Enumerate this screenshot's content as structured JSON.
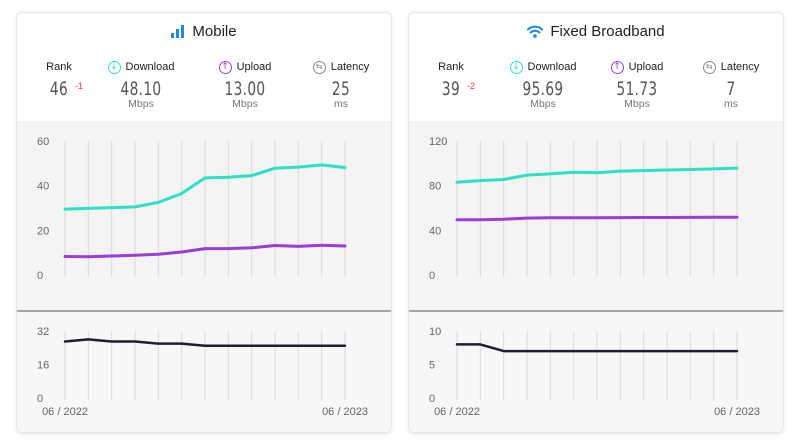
{
  "colors": {
    "download": "#2ee0c3",
    "upload": "#9b3ed6",
    "latency": "#1a1f2b",
    "title_icon": "#1e88e5",
    "rank_change": "#e53935",
    "grid": "#d9d9d9",
    "latency_icon": "#888888"
  },
  "panels": [
    {
      "title": "Mobile",
      "icon": "signal-bars-icon",
      "stats": {
        "rank": {
          "label": "Rank",
          "value": "46",
          "change": "-1"
        },
        "download": {
          "label": "Download",
          "value": "48.10",
          "unit": "Mbps",
          "icon": "download-arrow-icon"
        },
        "upload": {
          "label": "Upload",
          "value": "13.00",
          "unit": "Mbps",
          "icon": "upload-arrow-icon"
        },
        "latency": {
          "label": "Latency",
          "value": "25",
          "unit": "ms",
          "icon": "latency-arrows-icon"
        }
      }
    },
    {
      "title": "Fixed Broadband",
      "icon": "wifi-icon",
      "stats": {
        "rank": {
          "label": "Rank",
          "value": "39",
          "change": "-2"
        },
        "download": {
          "label": "Download",
          "value": "95.69",
          "unit": "Mbps",
          "icon": "download-arrow-icon"
        },
        "upload": {
          "label": "Upload",
          "value": "51.73",
          "unit": "Mbps",
          "icon": "upload-arrow-icon"
        },
        "latency": {
          "label": "Latency",
          "value": "7",
          "unit": "ms",
          "icon": "latency-arrows-icon"
        }
      }
    }
  ],
  "chart_data": [
    {
      "type": "line",
      "panel": "Mobile",
      "chart": "speed",
      "x": [
        "06/2022",
        "07/2022",
        "08/2022",
        "09/2022",
        "10/2022",
        "11/2022",
        "12/2022",
        "01/2023",
        "02/2023",
        "03/2023",
        "04/2023",
        "05/2023",
        "06/2023"
      ],
      "x_tick_labels": [
        "06 / 2022",
        "06 / 2023"
      ],
      "ylim": [
        0,
        60
      ],
      "y_ticks": [
        0,
        20,
        40,
        60
      ],
      "grid": true,
      "series": [
        {
          "key": "download",
          "values": [
            29.5,
            29.8,
            30.2,
            30.5,
            32.5,
            36.5,
            43.5,
            43.8,
            44.5,
            47.8,
            48.3,
            49.3,
            48.1
          ]
        },
        {
          "key": "upload",
          "values": [
            8.3,
            8.2,
            8.5,
            8.8,
            9.3,
            10.3,
            11.8,
            11.8,
            12.2,
            13.2,
            12.8,
            13.3,
            13.0
          ]
        }
      ]
    },
    {
      "type": "line",
      "panel": "Mobile",
      "chart": "latency",
      "x": [
        "06/2022",
        "07/2022",
        "08/2022",
        "09/2022",
        "10/2022",
        "11/2022",
        "12/2022",
        "01/2023",
        "02/2023",
        "03/2023",
        "04/2023",
        "05/2023",
        "06/2023"
      ],
      "x_tick_labels": [
        "06 / 2022",
        "06 / 2023"
      ],
      "ylim": [
        0,
        32
      ],
      "y_ticks": [
        0,
        16,
        32
      ],
      "grid": true,
      "series": [
        {
          "key": "latency",
          "values": [
            27,
            28,
            27,
            27,
            26,
            26,
            25,
            25,
            25,
            25,
            25,
            25,
            25
          ]
        }
      ]
    },
    {
      "type": "line",
      "panel": "Fixed Broadband",
      "chart": "speed",
      "x": [
        "06/2022",
        "07/2022",
        "08/2022",
        "09/2022",
        "10/2022",
        "11/2022",
        "12/2022",
        "01/2023",
        "02/2023",
        "03/2023",
        "04/2023",
        "05/2023",
        "06/2023"
      ],
      "x_tick_labels": [
        "06 / 2022",
        "06 / 2023"
      ],
      "ylim": [
        0,
        120
      ],
      "y_ticks": [
        0,
        40,
        80,
        120
      ],
      "grid": true,
      "series": [
        {
          "key": "download",
          "values": [
            83,
            84.5,
            85.5,
            89.5,
            90.5,
            92,
            91.5,
            93,
            93.5,
            94,
            94.5,
            95,
            95.7
          ]
        },
        {
          "key": "upload",
          "values": [
            49.5,
            49.5,
            50,
            51,
            51.2,
            51.3,
            51.3,
            51.4,
            51.5,
            51.5,
            51.6,
            51.7,
            51.7
          ]
        }
      ]
    },
    {
      "type": "line",
      "panel": "Fixed Broadband",
      "chart": "latency",
      "x": [
        "06/2022",
        "07/2022",
        "08/2022",
        "09/2022",
        "10/2022",
        "11/2022",
        "12/2022",
        "01/2023",
        "02/2023",
        "03/2023",
        "04/2023",
        "05/2023",
        "06/2023"
      ],
      "x_tick_labels": [
        "06 / 2022",
        "06 / 2023"
      ],
      "ylim": [
        0,
        10
      ],
      "y_ticks": [
        0,
        5,
        10
      ],
      "grid": true,
      "series": [
        {
          "key": "latency",
          "values": [
            8,
            8,
            7,
            7,
            7,
            7,
            7,
            7,
            7,
            7,
            7,
            7,
            7
          ]
        }
      ]
    }
  ]
}
